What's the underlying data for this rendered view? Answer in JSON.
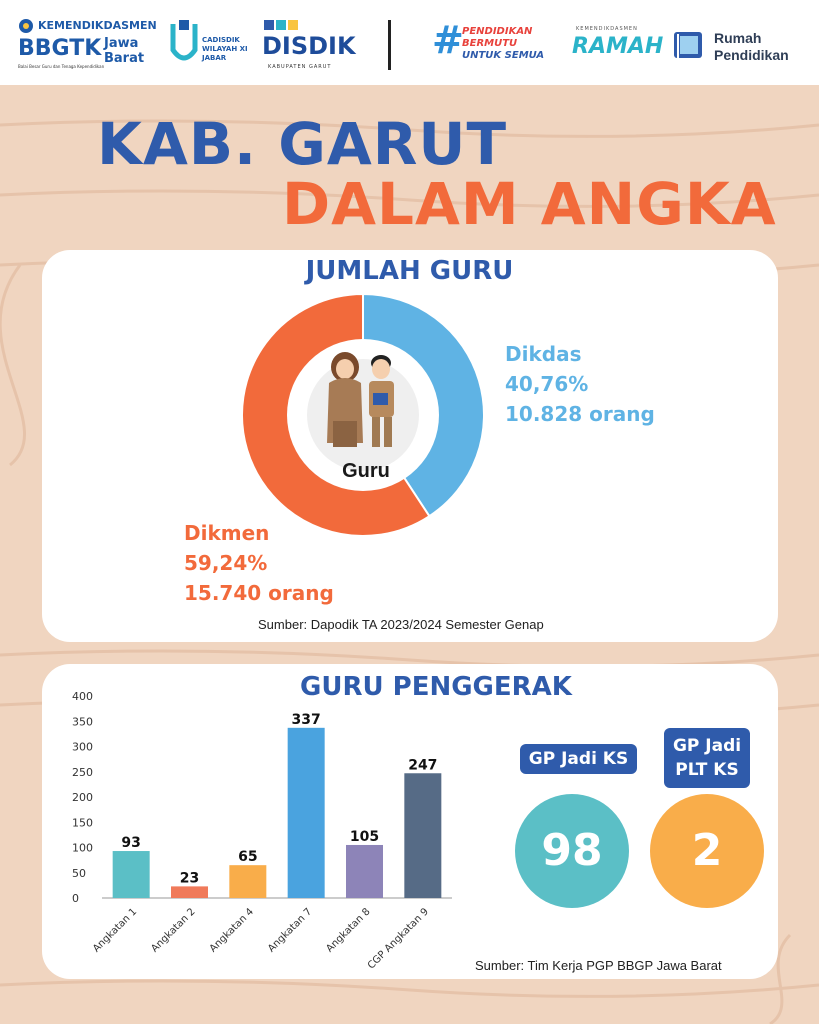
{
  "header": {
    "logo1_line1": "KEMENDIKDASMEN",
    "logo1_line2": "BBGTK",
    "logo1_line3": "Jawa",
    "logo1_line4": "Barat",
    "logo1_small": "Balai Besar Guru dan Tenaga Kependidikan",
    "logo2_line1": "CADISDIK",
    "logo2_line2": "WILAYAH XI",
    "logo2_line3": "JABAR",
    "logo3_main": "DISDIK",
    "logo3_sub": "KABUPATEN GARUT",
    "logo4_line1": "PENDIDIKAN",
    "logo4_line2": "BERMUTU",
    "logo4_line3": "UNTUK SEMUA",
    "logo5_small": "KEMENDIKDASMEN",
    "logo5_main": "RAMAH",
    "logo6_line1": "Rumah",
    "logo6_line2": "Pendidikan"
  },
  "title_line1": "KAB. GARUT",
  "title_line2": "DALAM ANGKA",
  "section1": {
    "title": "JUMLAH GURU",
    "center_label": "Guru",
    "dikdas_name": "Dikdas",
    "dikdas_pct": "40,76%",
    "dikdas_count": "10.828 orang",
    "dikmen_name": "Dikmen",
    "dikmen_pct": "59,24%",
    "dikmen_count": "15.740 orang",
    "source": "Sumber: Dapodik TA 2023/2024 Semester Genap"
  },
  "section2": {
    "title": "GURU PENGGERAK",
    "badge1": "GP Jadi KS",
    "badge2_line1": "GP Jadi",
    "badge2_line2": "PLT KS",
    "value1": "98",
    "value2": "2",
    "source": "Sumber: Tim Kerja PGP BBGP Jawa Barat"
  },
  "colors": {
    "blue_title": "#2f5bab",
    "orange": "#f26a3b",
    "light_blue": "#5fb3e4",
    "teal_circle": "#5bbfc6",
    "orange_circle": "#f9ad4a"
  },
  "chart_data": [
    {
      "type": "pie",
      "title": "JUMLAH GURU",
      "donut": true,
      "categories": [
        "Dikdas",
        "Dikmen"
      ],
      "values": [
        40.76,
        59.24
      ],
      "counts": [
        10828,
        15740
      ],
      "colors": [
        "#5fb3e4",
        "#f26a3b"
      ]
    },
    {
      "type": "bar",
      "title": "GURU PENGGERAK",
      "categories": [
        "Angkatan 1",
        "Angkatan 2",
        "Angkatan 4",
        "Angkatan 7",
        "Angkatan 8",
        "CGP Angkatan 9"
      ],
      "values": [
        93,
        23,
        65,
        337,
        105,
        247
      ],
      "colors": [
        "#5bbfc6",
        "#f07a5a",
        "#f9ad4a",
        "#4aa3df",
        "#8d84b8",
        "#566b86"
      ],
      "ylim": [
        0,
        400
      ],
      "yticks": [
        0,
        50,
        100,
        150,
        200,
        250,
        300,
        350,
        400
      ],
      "grid": false,
      "xlabel": "",
      "ylabel": ""
    }
  ]
}
